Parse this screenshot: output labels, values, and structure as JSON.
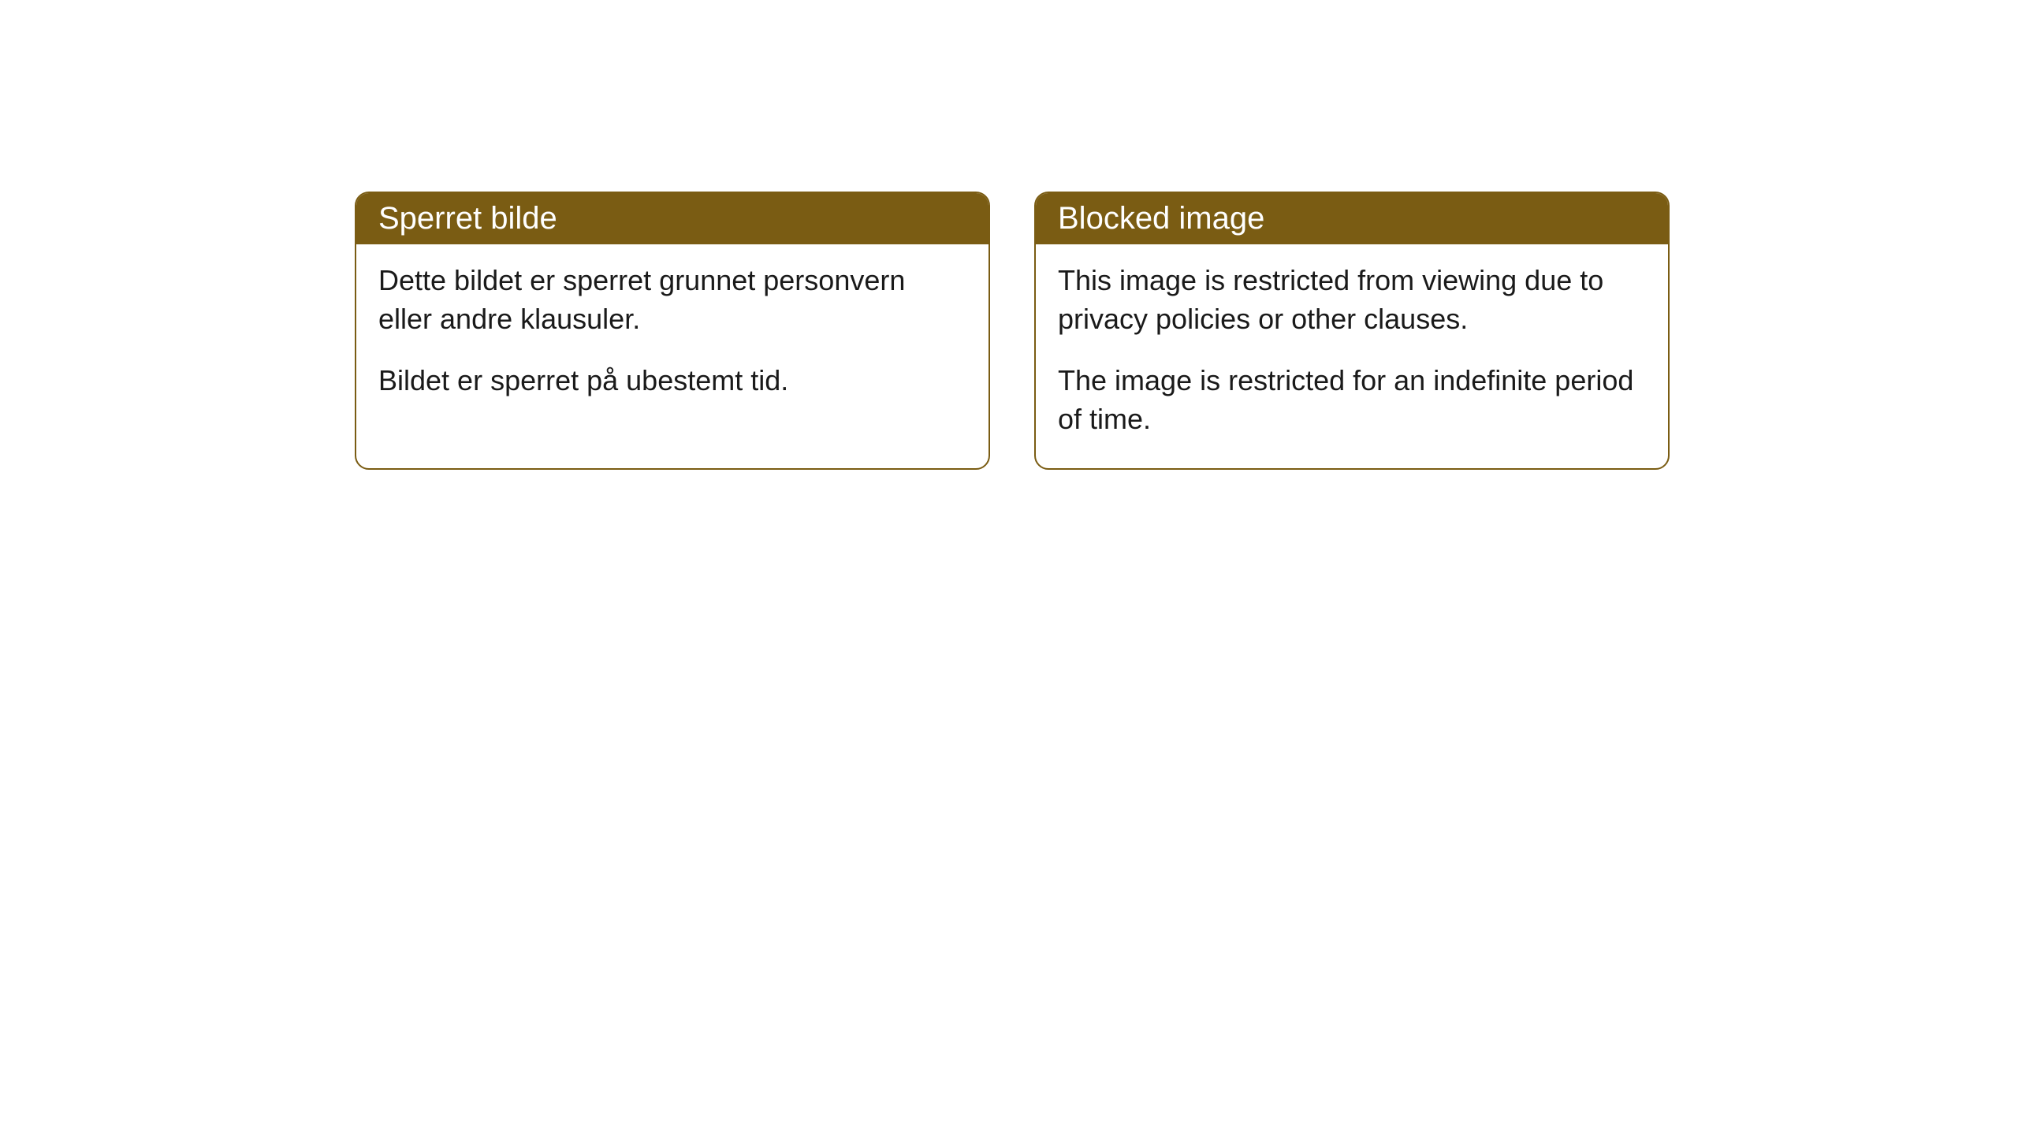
{
  "cards": {
    "left": {
      "title": "Sperret bilde",
      "paragraph1": "Dette bildet er sperret grunnet personvern eller andre klausuler.",
      "paragraph2": "Bildet er sperret på ubestemt tid."
    },
    "right": {
      "title": "Blocked image",
      "paragraph1": "This image is restricted from viewing due to privacy policies or other clauses.",
      "paragraph2": "The image is restricted for an indefinite period of time."
    }
  },
  "styling": {
    "header_bg": "#7a5c13",
    "header_text": "#ffffff",
    "border_color": "#7a5c13",
    "body_bg": "#ffffff",
    "body_text": "#1a1a1a",
    "border_radius": 18,
    "title_fontsize": 40,
    "body_fontsize": 36
  }
}
